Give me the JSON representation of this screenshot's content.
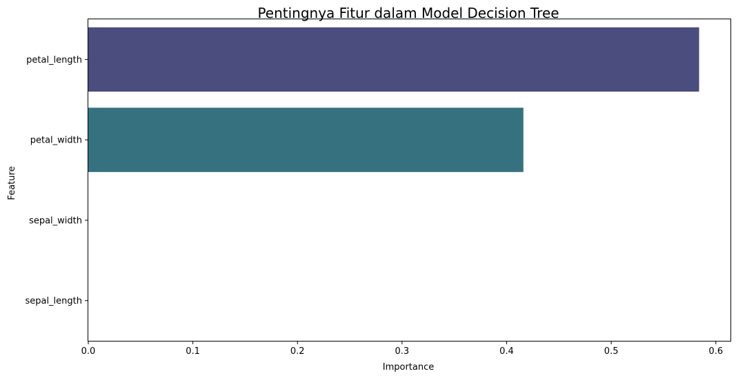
{
  "chart_data": {
    "type": "bar",
    "orientation": "horizontal",
    "title": "Pentingnya Fitur dalam Model Decision Tree",
    "xlabel": "Importance",
    "ylabel": "Feature",
    "categories": [
      "petal_length",
      "petal_width",
      "sepal_width",
      "sepal_length"
    ],
    "values": [
      0.584,
      0.416,
      0.0,
      0.0
    ],
    "colors": [
      "#4b4d7e",
      "#367180",
      "#2ea17e",
      "#6bc65a"
    ],
    "xlim": [
      0,
      0.614
    ],
    "xticks": [
      0.0,
      0.1,
      0.2,
      0.3,
      0.4,
      0.5,
      0.6
    ],
    "xtick_labels": [
      "0.0",
      "0.1",
      "0.2",
      "0.3",
      "0.4",
      "0.5",
      "0.6"
    ],
    "grid": false,
    "legend": "none"
  }
}
